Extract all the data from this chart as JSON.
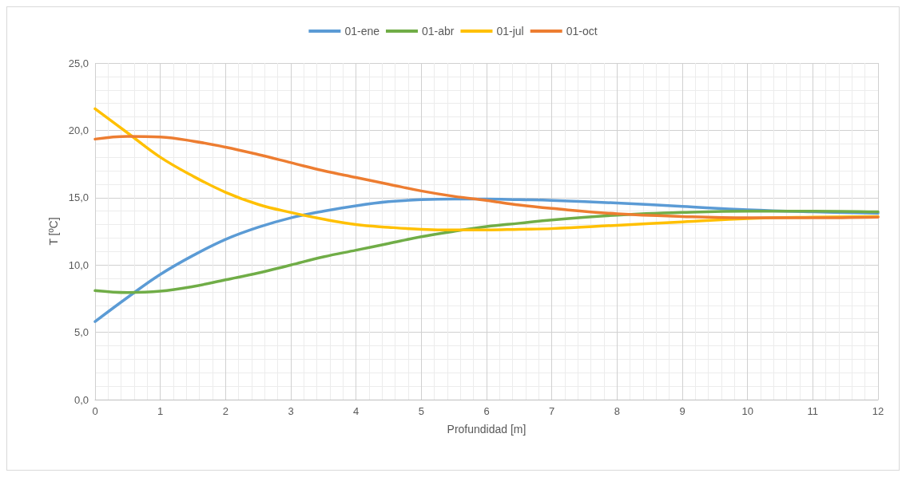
{
  "chart_data": {
    "type": "line",
    "xlabel": "Profundidad [m]",
    "ylabel": "T [ºC]",
    "x": [
      0,
      0.5,
      1,
      1.5,
      2,
      2.5,
      3,
      3.5,
      4,
      4.5,
      5,
      5.5,
      6,
      6.5,
      7,
      8,
      9,
      10,
      11,
      12
    ],
    "series": [
      {
        "name": "01-ene",
        "color": "#5b9bd5",
        "values": [
          5.8,
          7.6,
          9.3,
          10.7,
          11.9,
          12.8,
          13.5,
          14.0,
          14.4,
          14.7,
          14.85,
          14.9,
          14.9,
          14.85,
          14.8,
          14.6,
          14.35,
          14.1,
          13.95,
          13.85
        ]
      },
      {
        "name": "01-abr",
        "color": "#70ad47",
        "values": [
          8.1,
          7.95,
          8.05,
          8.4,
          8.9,
          9.4,
          10.0,
          10.6,
          11.1,
          11.6,
          12.1,
          12.5,
          12.85,
          13.1,
          13.35,
          13.7,
          13.9,
          14.0,
          14.0,
          13.95
        ]
      },
      {
        "name": "01-jul",
        "color": "#ffc000",
        "values": [
          21.6,
          19.8,
          18.0,
          16.6,
          15.4,
          14.5,
          13.9,
          13.4,
          13.0,
          12.8,
          12.65,
          12.6,
          12.6,
          12.65,
          12.7,
          12.95,
          13.2,
          13.45,
          13.55,
          13.6
        ]
      },
      {
        "name": "01-oct",
        "color": "#ed7d31",
        "values": [
          19.35,
          19.55,
          19.5,
          19.2,
          18.75,
          18.2,
          17.6,
          17.0,
          16.5,
          16.0,
          15.5,
          15.1,
          14.8,
          14.45,
          14.2,
          13.8,
          13.6,
          13.5,
          13.5,
          13.55
        ]
      }
    ],
    "xlim": [
      0,
      12
    ],
    "xticks": [
      0,
      1,
      2,
      3,
      4,
      5,
      6,
      7,
      8,
      9,
      10,
      11,
      12
    ],
    "ylim": [
      0,
      25
    ],
    "yticks": [
      {
        "value": 0,
        "label": "0,0"
      },
      {
        "value": 5,
        "label": "5,0"
      },
      {
        "value": 10,
        "label": "10,0"
      },
      {
        "value": 15,
        "label": "15,0"
      },
      {
        "value": 20,
        "label": "20,0"
      },
      {
        "value": 25,
        "label": "25,0"
      }
    ],
    "grid": true,
    "legend": "top",
    "marker": "none",
    "line_style": "solid"
  }
}
